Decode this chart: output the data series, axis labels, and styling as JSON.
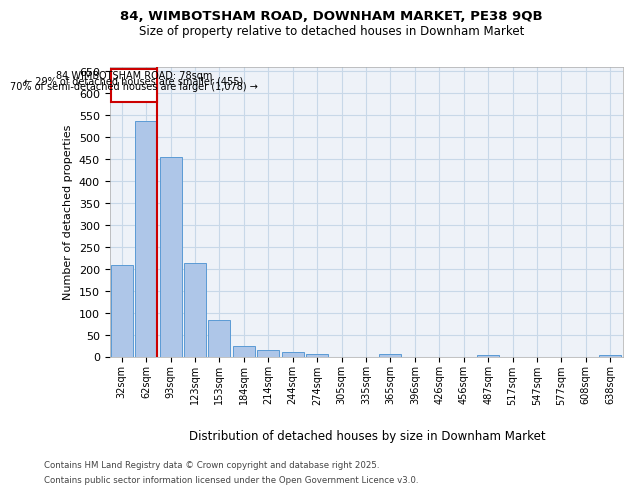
{
  "title1": "84, WIMBOTSHAM ROAD, DOWNHAM MARKET, PE38 9QB",
  "title2": "Size of property relative to detached houses in Downham Market",
  "xlabel": "Distribution of detached houses by size in Downham Market",
  "ylabel": "Number of detached properties",
  "categories": [
    "32sqm",
    "62sqm",
    "93sqm",
    "123sqm",
    "153sqm",
    "184sqm",
    "214sqm",
    "244sqm",
    "274sqm",
    "305sqm",
    "335sqm",
    "365sqm",
    "396sqm",
    "426sqm",
    "456sqm",
    "487sqm",
    "517sqm",
    "547sqm",
    "577sqm",
    "608sqm",
    "638sqm"
  ],
  "values": [
    209,
    536,
    455,
    213,
    82,
    25,
    15,
    10,
    5,
    0,
    0,
    5,
    0,
    0,
    0,
    4,
    0,
    0,
    0,
    0,
    4
  ],
  "bar_color": "#aec6e8",
  "bar_edge_color": "#5b9bd5",
  "grid_color": "#c8d8e8",
  "background_color": "#eef2f8",
  "annotation_box_color": "#cc0000",
  "property_line_color": "#cc0000",
  "property_bin_index": 1,
  "annotation_text_line1": "84 WIMBOTSHAM ROAD: 78sqm",
  "annotation_text_line2": "← 29% of detached houses are smaller (455)",
  "annotation_text_line3": "70% of semi-detached houses are larger (1,078) →",
  "footer1": "Contains HM Land Registry data © Crown copyright and database right 2025.",
  "footer2": "Contains public sector information licensed under the Open Government Licence v3.0.",
  "ylim": [
    0,
    660
  ],
  "yticks": [
    0,
    50,
    100,
    150,
    200,
    250,
    300,
    350,
    400,
    450,
    500,
    550,
    600,
    650
  ]
}
